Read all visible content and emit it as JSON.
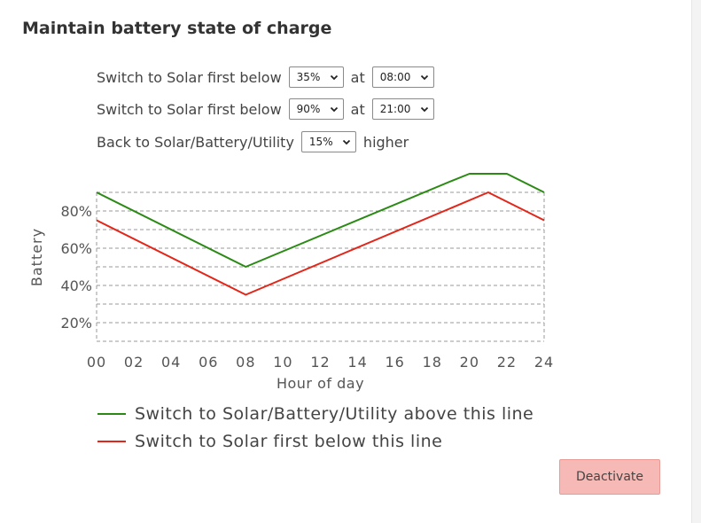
{
  "section": {
    "title": "Maintain battery state of charge"
  },
  "rows": [
    {
      "label": "Switch to Solar first below",
      "value": "35%",
      "sep": "at",
      "time": "08:00"
    },
    {
      "label": "Switch to Solar first below",
      "value": "90%",
      "sep": "at",
      "time": "21:00"
    },
    {
      "label": "Back to Solar/Battery/Utility",
      "value": "15%",
      "sep": "higher"
    }
  ],
  "chart_data": {
    "type": "line",
    "xlabel": "Hour of day",
    "ylabel": "Battery",
    "xlim": [
      0,
      24
    ],
    "ylim": [
      20,
      90
    ],
    "xticks": [
      "00",
      "02",
      "04",
      "06",
      "08",
      "10",
      "12",
      "14",
      "16",
      "18",
      "20",
      "22",
      "24"
    ],
    "yticks": [
      "80%",
      "60%",
      "40%",
      "20%"
    ],
    "grid": true,
    "series": [
      {
        "name": "Switch to Solar/Battery/Utility above this line",
        "color": "#2a8a14",
        "x": [
          0,
          8,
          19,
          20,
          21,
          22,
          24
        ],
        "y": [
          90,
          50,
          96,
          100,
          100,
          100,
          90
        ]
      },
      {
        "name": "Switch to Solar first below this line",
        "color": "#e2261a",
        "x": [
          0,
          8,
          21,
          24
        ],
        "y": [
          75,
          35,
          90,
          75
        ]
      }
    ]
  },
  "legend": [
    {
      "label": "Switch to Solar/Battery/Utility above this line",
      "color": "#2a8a14"
    },
    {
      "label": "Switch to Solar first below this line",
      "color": "#e2261a"
    }
  ],
  "buttons": {
    "deactivate": "Deactivate"
  }
}
